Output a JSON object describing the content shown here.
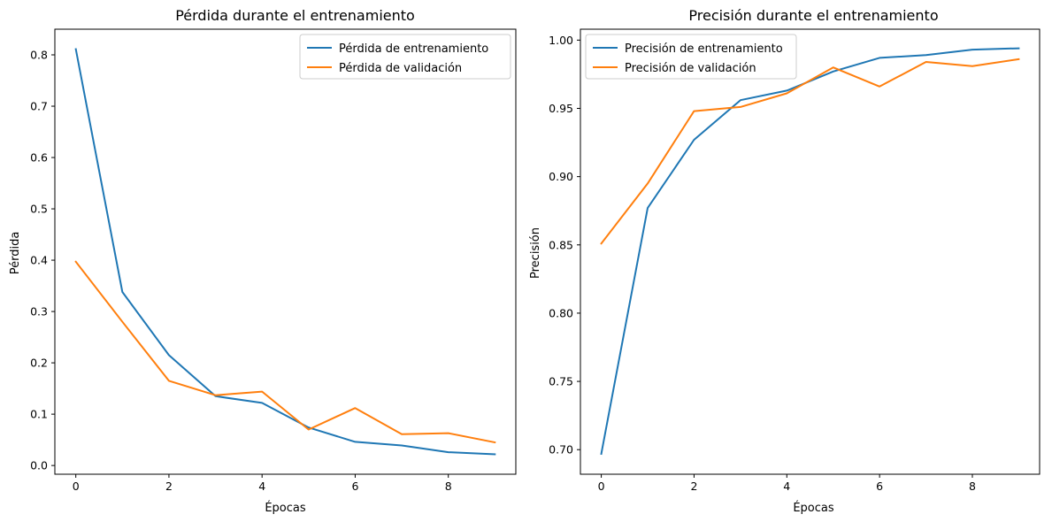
{
  "chart_data": [
    {
      "type": "line",
      "title": "Pérdida durante el entrenamiento",
      "xlabel": "Épocas",
      "ylabel": "Pérdida",
      "x": [
        0,
        1,
        2,
        3,
        4,
        5,
        6,
        7,
        8,
        9
      ],
      "xlim": [
        -0.45,
        9.45
      ],
      "ylim": [
        -0.017,
        0.85
      ],
      "xticks": [
        0,
        2,
        4,
        6,
        8
      ],
      "yticks": [
        0.0,
        0.1,
        0.2,
        0.3,
        0.4,
        0.5,
        0.6,
        0.7,
        0.8
      ],
      "ytick_labels": [
        "0.0",
        "0.1",
        "0.2",
        "0.3",
        "0.4",
        "0.5",
        "0.6",
        "0.7",
        "0.8"
      ],
      "grid": false,
      "legend_position": "top-right",
      "series": [
        {
          "name": "Pérdida de entrenamiento",
          "color": "#1f77b4",
          "values": [
            0.811,
            0.338,
            0.215,
            0.135,
            0.122,
            0.074,
            0.046,
            0.039,
            0.026,
            0.022
          ]
        },
        {
          "name": "Pérdida de validación",
          "color": "#ff7f0e",
          "values": [
            0.397,
            0.28,
            0.165,
            0.137,
            0.144,
            0.07,
            0.112,
            0.061,
            0.063,
            0.045
          ]
        }
      ]
    },
    {
      "type": "line",
      "title": "Precisión durante el entrenamiento",
      "xlabel": "Épocas",
      "ylabel": "Precisión",
      "x": [
        0,
        1,
        2,
        3,
        4,
        5,
        6,
        7,
        8,
        9
      ],
      "xlim": [
        -0.45,
        9.45
      ],
      "ylim": [
        0.682,
        1.008
      ],
      "xticks": [
        0,
        2,
        4,
        6,
        8
      ],
      "yticks": [
        0.7,
        0.75,
        0.8,
        0.85,
        0.9,
        0.95,
        1.0
      ],
      "ytick_labels": [
        "0.70",
        "0.75",
        "0.80",
        "0.85",
        "0.90",
        "0.95",
        "1.00"
      ],
      "grid": false,
      "legend_position": "top-left",
      "series": [
        {
          "name": "Precisión de entrenamiento",
          "color": "#1f77b4",
          "values": [
            0.697,
            0.877,
            0.927,
            0.956,
            0.963,
            0.977,
            0.987,
            0.989,
            0.993,
            0.994
          ]
        },
        {
          "name": "Precisión de validación",
          "color": "#ff7f0e",
          "values": [
            0.851,
            0.895,
            0.948,
            0.951,
            0.961,
            0.98,
            0.966,
            0.984,
            0.981,
            0.986
          ]
        }
      ]
    }
  ]
}
